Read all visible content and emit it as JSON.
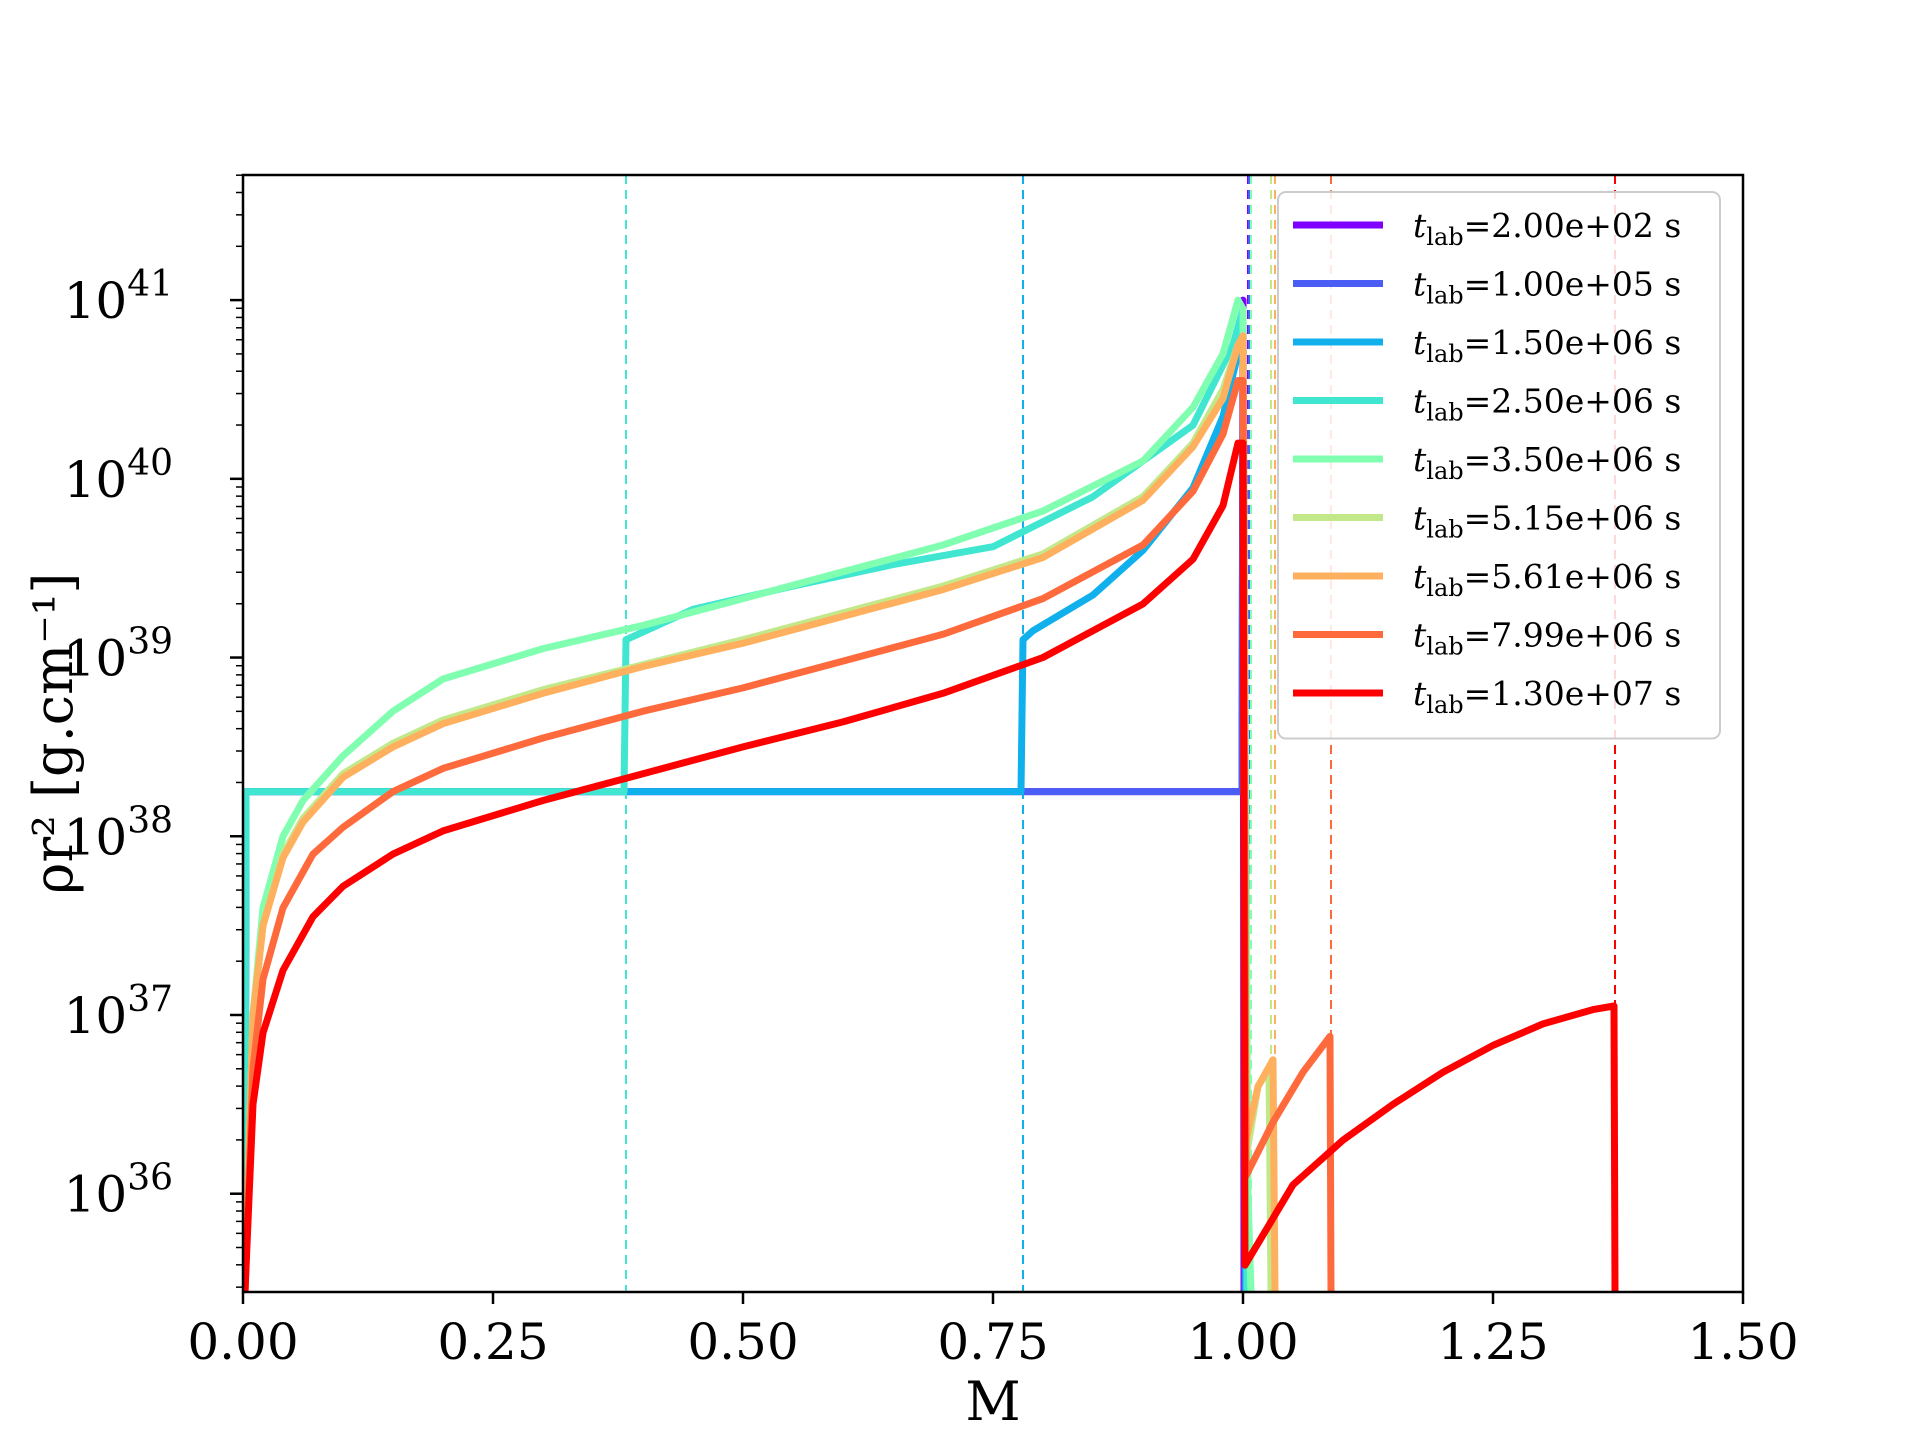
{
  "chart_data": {
    "type": "line",
    "xlabel": "M",
    "ylabel": "ρr² [g.cm⁻¹]",
    "xlim": [
      0.0,
      1.5
    ],
    "ylim_log10": [
      35.45,
      41.7
    ],
    "yscale": "log",
    "x_ticks": [
      "0.00",
      "0.25",
      "0.50",
      "0.75",
      "1.00",
      "1.25",
      "1.50"
    ],
    "y_ticks": [
      {
        "base": "10",
        "exp": "36",
        "log10": 36
      },
      {
        "base": "10",
        "exp": "37",
        "log10": 37
      },
      {
        "base": "10",
        "exp": "38",
        "log10": 38
      },
      {
        "base": "10",
        "exp": "39",
        "log10": 39
      },
      {
        "base": "10",
        "exp": "40",
        "log10": 40
      },
      {
        "base": "10",
        "exp": "41",
        "log10": 41
      }
    ],
    "legend_position": "upper right",
    "grid": false,
    "series": [
      {
        "name": "t_lab=2.00e+02 s",
        "label_sub": "lab",
        "label_rest": "=2.00e+02 s",
        "color": "#7f00ff",
        "shock_x": 1.005,
        "points": [
          [
            0.002,
            35.45
          ],
          [
            0.003,
            38.25
          ],
          [
            0.999,
            38.25
          ],
          [
            1.0,
            41.0
          ],
          [
            1.001,
            35.45
          ]
        ]
      },
      {
        "name": "t_lab=1.00e+05 s",
        "label_sub": "lab",
        "label_rest": "=1.00e+05 s",
        "color": "#4a5ef5",
        "shock_x": 1.006,
        "points": [
          [
            0.002,
            35.45
          ],
          [
            0.003,
            38.25
          ],
          [
            0.999,
            38.25
          ],
          [
            1.0,
            40.9
          ],
          [
            1.002,
            35.45
          ]
        ]
      },
      {
        "name": "t_lab=1.50e+06 s",
        "label_sub": "lab",
        "label_rest": "=1.50e+06 s",
        "color": "#10b0ec",
        "shock_x": 0.78,
        "points": [
          [
            0.002,
            35.45
          ],
          [
            0.003,
            38.25
          ],
          [
            0.778,
            38.25
          ],
          [
            0.78,
            39.1
          ],
          [
            0.79,
            39.15
          ],
          [
            0.85,
            39.35
          ],
          [
            0.9,
            39.6
          ],
          [
            0.95,
            39.95
          ],
          [
            0.98,
            40.35
          ],
          [
            0.995,
            40.7
          ],
          [
            1.0,
            40.85
          ],
          [
            1.003,
            35.45
          ]
        ]
      },
      {
        "name": "t_lab=2.50e+06 s",
        "label_sub": "lab",
        "label_rest": "=2.50e+06 s",
        "color": "#40e6d0",
        "shock_x": 0.383,
        "points": [
          [
            0.002,
            35.45
          ],
          [
            0.003,
            38.25
          ],
          [
            0.381,
            38.25
          ],
          [
            0.383,
            39.1
          ],
          [
            0.45,
            39.27
          ],
          [
            0.55,
            39.4
          ],
          [
            0.65,
            39.52
          ],
          [
            0.75,
            39.62
          ],
          [
            0.85,
            39.9
          ],
          [
            0.95,
            40.3
          ],
          [
            0.99,
            40.75
          ],
          [
            1.0,
            40.95
          ],
          [
            1.004,
            35.45
          ]
        ]
      },
      {
        "name": "t_lab=3.50e+06 s",
        "label_sub": "lab",
        "label_rest": "=3.50e+06 s",
        "color": "#80ffb0",
        "shock_x": 1.008,
        "points": [
          [
            0.002,
            35.45
          ],
          [
            0.01,
            37.0
          ],
          [
            0.02,
            37.6
          ],
          [
            0.04,
            38.0
          ],
          [
            0.06,
            38.2
          ],
          [
            0.1,
            38.45
          ],
          [
            0.15,
            38.7
          ],
          [
            0.2,
            38.88
          ],
          [
            0.3,
            39.05
          ],
          [
            0.4,
            39.18
          ],
          [
            0.5,
            39.33
          ],
          [
            0.6,
            39.48
          ],
          [
            0.7,
            39.63
          ],
          [
            0.8,
            39.82
          ],
          [
            0.9,
            40.1
          ],
          [
            0.95,
            40.4
          ],
          [
            0.98,
            40.7
          ],
          [
            0.995,
            41.0
          ],
          [
            1.0,
            40.95
          ],
          [
            1.005,
            36.0
          ],
          [
            1.008,
            35.45
          ]
        ]
      },
      {
        "name": "t_lab=5.15e+06 s",
        "label_sub": "lab",
        "label_rest": "=5.15e+06 s",
        "color": "#c2e88a",
        "shock_x": 1.028,
        "points": [
          [
            0.002,
            35.45
          ],
          [
            0.01,
            37.0
          ],
          [
            0.02,
            37.5
          ],
          [
            0.04,
            37.9
          ],
          [
            0.06,
            38.1
          ],
          [
            0.1,
            38.35
          ],
          [
            0.15,
            38.52
          ],
          [
            0.2,
            38.65
          ],
          [
            0.3,
            38.82
          ],
          [
            0.4,
            38.96
          ],
          [
            0.5,
            39.1
          ],
          [
            0.6,
            39.25
          ],
          [
            0.7,
            39.4
          ],
          [
            0.8,
            39.58
          ],
          [
            0.9,
            39.9
          ],
          [
            0.95,
            40.2
          ],
          [
            0.98,
            40.5
          ],
          [
            0.995,
            40.75
          ],
          [
            1.0,
            40.75
          ],
          [
            1.003,
            36.2
          ],
          [
            1.015,
            36.6
          ],
          [
            1.026,
            36.7
          ],
          [
            1.028,
            35.45
          ]
        ]
      },
      {
        "name": "t_lab=5.61e+06 s",
        "label_sub": "lab",
        "label_rest": "=5.61e+06 s",
        "color": "#ffb05e",
        "shock_x": 1.032,
        "points": [
          [
            0.002,
            35.45
          ],
          [
            0.01,
            37.0
          ],
          [
            0.02,
            37.5
          ],
          [
            0.04,
            37.88
          ],
          [
            0.06,
            38.08
          ],
          [
            0.1,
            38.33
          ],
          [
            0.15,
            38.5
          ],
          [
            0.2,
            38.63
          ],
          [
            0.3,
            38.8
          ],
          [
            0.4,
            38.95
          ],
          [
            0.5,
            39.08
          ],
          [
            0.6,
            39.23
          ],
          [
            0.7,
            39.38
          ],
          [
            0.8,
            39.56
          ],
          [
            0.9,
            39.88
          ],
          [
            0.95,
            40.18
          ],
          [
            0.98,
            40.45
          ],
          [
            0.995,
            40.75
          ],
          [
            1.0,
            40.8
          ],
          [
            1.003,
            36.3
          ],
          [
            1.015,
            36.6
          ],
          [
            1.03,
            36.75
          ],
          [
            1.032,
            35.45
          ]
        ]
      },
      {
        "name": "t_lab=7.99e+06 s",
        "label_sub": "lab",
        "label_rest": "=7.99e+06 s",
        "color": "#ff6a3d",
        "shock_x": 1.088,
        "points": [
          [
            0.002,
            35.45
          ],
          [
            0.01,
            36.7
          ],
          [
            0.02,
            37.2
          ],
          [
            0.04,
            37.6
          ],
          [
            0.07,
            37.9
          ],
          [
            0.1,
            38.05
          ],
          [
            0.15,
            38.25
          ],
          [
            0.2,
            38.38
          ],
          [
            0.3,
            38.55
          ],
          [
            0.4,
            38.7
          ],
          [
            0.5,
            38.83
          ],
          [
            0.6,
            38.98
          ],
          [
            0.7,
            39.13
          ],
          [
            0.8,
            39.33
          ],
          [
            0.9,
            39.63
          ],
          [
            0.95,
            39.93
          ],
          [
            0.98,
            40.25
          ],
          [
            0.995,
            40.55
          ],
          [
            1.0,
            40.55
          ],
          [
            1.003,
            36.1
          ],
          [
            1.03,
            36.4
          ],
          [
            1.06,
            36.68
          ],
          [
            1.087,
            36.88
          ],
          [
            1.088,
            35.45
          ]
        ]
      },
      {
        "name": "t_lab=1.30e+07 s",
        "label_sub": "lab",
        "label_rest": "=1.30e+07 s",
        "color": "#ff0000",
        "shock_x": 1.372,
        "points": [
          [
            0.002,
            35.45
          ],
          [
            0.01,
            36.5
          ],
          [
            0.02,
            36.9
          ],
          [
            0.04,
            37.25
          ],
          [
            0.07,
            37.55
          ],
          [
            0.1,
            37.72
          ],
          [
            0.15,
            37.9
          ],
          [
            0.2,
            38.03
          ],
          [
            0.3,
            38.2
          ],
          [
            0.4,
            38.35
          ],
          [
            0.5,
            38.5
          ],
          [
            0.6,
            38.64
          ],
          [
            0.7,
            38.8
          ],
          [
            0.8,
            39.0
          ],
          [
            0.9,
            39.3
          ],
          [
            0.95,
            39.55
          ],
          [
            0.98,
            39.85
          ],
          [
            0.995,
            40.2
          ],
          [
            1.0,
            40.2
          ],
          [
            1.002,
            35.6
          ],
          [
            1.05,
            36.05
          ],
          [
            1.1,
            36.3
          ],
          [
            1.15,
            36.5
          ],
          [
            1.2,
            36.68
          ],
          [
            1.25,
            36.83
          ],
          [
            1.3,
            36.95
          ],
          [
            1.35,
            37.03
          ],
          [
            1.371,
            37.05
          ],
          [
            1.372,
            35.45
          ]
        ]
      }
    ]
  }
}
